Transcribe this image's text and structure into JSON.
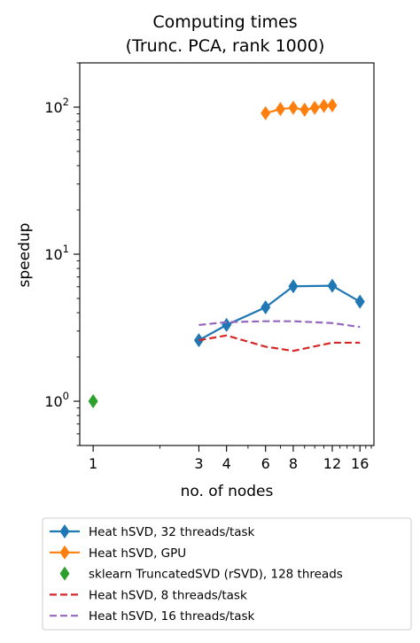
{
  "chart_data": {
    "type": "line",
    "title": "Computing times",
    "subtitle": "(Trunc. PCA, rank 1000)",
    "xlabel": "no. of nodes",
    "ylabel": "speedup",
    "xscale": "log",
    "yscale": "log",
    "xlim": [
      0.87,
      18.5
    ],
    "ylim": [
      0.5,
      200
    ],
    "xticks": [
      1,
      3,
      4,
      6,
      8,
      12,
      16
    ],
    "xtick_labels": [
      "1",
      "3",
      "4",
      "6",
      "8",
      "12",
      "16"
    ],
    "yticks": [
      1,
      10,
      100
    ],
    "ytick_labels": [
      {
        "base": "10",
        "exp": "0"
      },
      {
        "base": "10",
        "exp": "1"
      },
      {
        "base": "10",
        "exp": "2"
      }
    ],
    "grid": false,
    "legend_placement": "bottom",
    "series": [
      {
        "name": "Heat hSVD, 32 threads/task",
        "color": "#1f77b4",
        "style": "solid",
        "marker": "diamond",
        "x": [
          3,
          4,
          6,
          8,
          12,
          16
        ],
        "y": [
          2.6,
          3.3,
          4.35,
          6.05,
          6.1,
          4.75
        ]
      },
      {
        "name": "Heat hSVD, GPU",
        "color": "#ff7f0e",
        "style": "solid",
        "marker": "diamond",
        "x": [
          6,
          7,
          8,
          9,
          10,
          11,
          12
        ],
        "y": [
          91,
          97,
          99,
          96,
          99,
          102,
          103
        ]
      },
      {
        "name": "sklearn TruncatedSVD (rSVD), 128 threads",
        "color": "#2ca02c",
        "style": "none",
        "marker": "diamond",
        "x": [
          1
        ],
        "y": [
          1.0
        ]
      },
      {
        "name": "Heat hSVD, 8 threads/task",
        "color": "#d62728",
        "style": "dashed",
        "marker": "none",
        "x": [
          3,
          4,
          6,
          8,
          12,
          16
        ],
        "y": [
          2.6,
          2.8,
          2.35,
          2.2,
          2.5,
          2.5
        ]
      },
      {
        "name": "Heat hSVD, 16 threads/task",
        "color": "#9467bd",
        "style": "dashed",
        "marker": "none",
        "x": [
          3,
          4,
          6,
          8,
          12,
          16
        ],
        "y": [
          3.3,
          3.45,
          3.5,
          3.5,
          3.4,
          3.2
        ]
      }
    ]
  }
}
